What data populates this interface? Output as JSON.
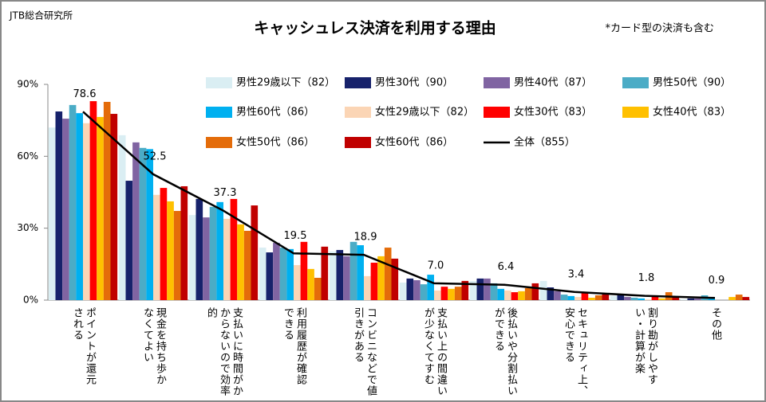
{
  "source": "JTB総合研究所",
  "note": "*カード型の決済も含む",
  "chart_data": {
    "type": "bar",
    "title": "キャッシュレス決済を利用する理由",
    "categories": [
      "ポイントが還元\nされる",
      "現金を持ち歩か\nなくてよい",
      "支払いに時間がか\nからないので効率\n的",
      "利用履歴が確認\nできる",
      "コンビニなどで値\n引きがある",
      "支払い上の間違い\nが少なくてすむ",
      "後払いや分割払い\nができる",
      "セキュリティ上、\n安心できる",
      "割り勘がしやす\nい・計算が楽",
      "その他"
    ],
    "ylim": [
      0,
      90
    ],
    "yticks": [
      {
        "value": 0,
        "label": "0%"
      },
      {
        "value": 30,
        "label": "30%"
      },
      {
        "value": 60,
        "label": "60%"
      },
      {
        "value": 90,
        "label": "90%"
      }
    ],
    "series": [
      {
        "name": "男性29歳以下（82）",
        "color": "#daeef3",
        "values": [
          72,
          68.8,
          35.5,
          21.9,
          20.3,
          7.3,
          8,
          8,
          1.7,
          0.3
        ]
      },
      {
        "name": "男性30代（90）",
        "color": "#17226b",
        "values": [
          78.7,
          49.8,
          42.2,
          19.9,
          20.9,
          9,
          9,
          5.3,
          2,
          0.7
        ]
      },
      {
        "name": "男性40代（87）",
        "color": "#8064a2",
        "values": [
          75.7,
          65.8,
          34.5,
          23.9,
          18.3,
          8.3,
          9,
          3.7,
          1.3,
          0.7
        ]
      },
      {
        "name": "男性50代（90）",
        "color": "#4bacc6",
        "values": [
          81.4,
          63.5,
          38.9,
          21.9,
          24.3,
          6.6,
          7,
          2.3,
          1,
          2
        ]
      },
      {
        "name": "男性60代（86）",
        "color": "#00b0f0",
        "values": [
          78,
          63,
          40.9,
          21.3,
          22.9,
          10.6,
          4.7,
          1.7,
          0.7,
          0.7
        ]
      },
      {
        "name": "女性29歳以下（82）",
        "color": "#fbd5b5",
        "values": [
          73.8,
          43.9,
          33.9,
          14.6,
          10,
          4,
          4,
          1.3,
          0.3,
          0
        ]
      },
      {
        "name": "女性30代（83）",
        "color": "#ff0000",
        "values": [
          83,
          46.8,
          42.2,
          24.3,
          15.6,
          5.6,
          3.3,
          3,
          2,
          0
        ]
      },
      {
        "name": "女性40代（83）",
        "color": "#ffc000",
        "values": [
          76.4,
          41.2,
          31.6,
          13,
          18.3,
          4.7,
          3.7,
          1,
          0.7,
          1.3
        ]
      },
      {
        "name": "女性50代（86）",
        "color": "#e46c0a",
        "values": [
          82.7,
          37.2,
          28.9,
          9.3,
          21.9,
          5.6,
          5,
          2,
          3.3,
          2.3
        ]
      },
      {
        "name": "女性60代（86）",
        "color": "#c00000",
        "values": [
          77.7,
          47.5,
          39.5,
          22.3,
          17.3,
          8,
          7,
          2.7,
          1.3,
          1.3
        ]
      },
      {
        "name": "全体（855）",
        "color": "#000000",
        "type": "line",
        "values": [
          78.6,
          52.5,
          37.3,
          19.5,
          18.9,
          7.0,
          6.4,
          3.4,
          1.8,
          0.9
        ],
        "value_labels": [
          "78.6",
          "52.5",
          "37.3",
          "19.5",
          "18.9",
          "7.0",
          "6.4",
          "3.4",
          "1.8",
          "0.9"
        ]
      }
    ]
  }
}
